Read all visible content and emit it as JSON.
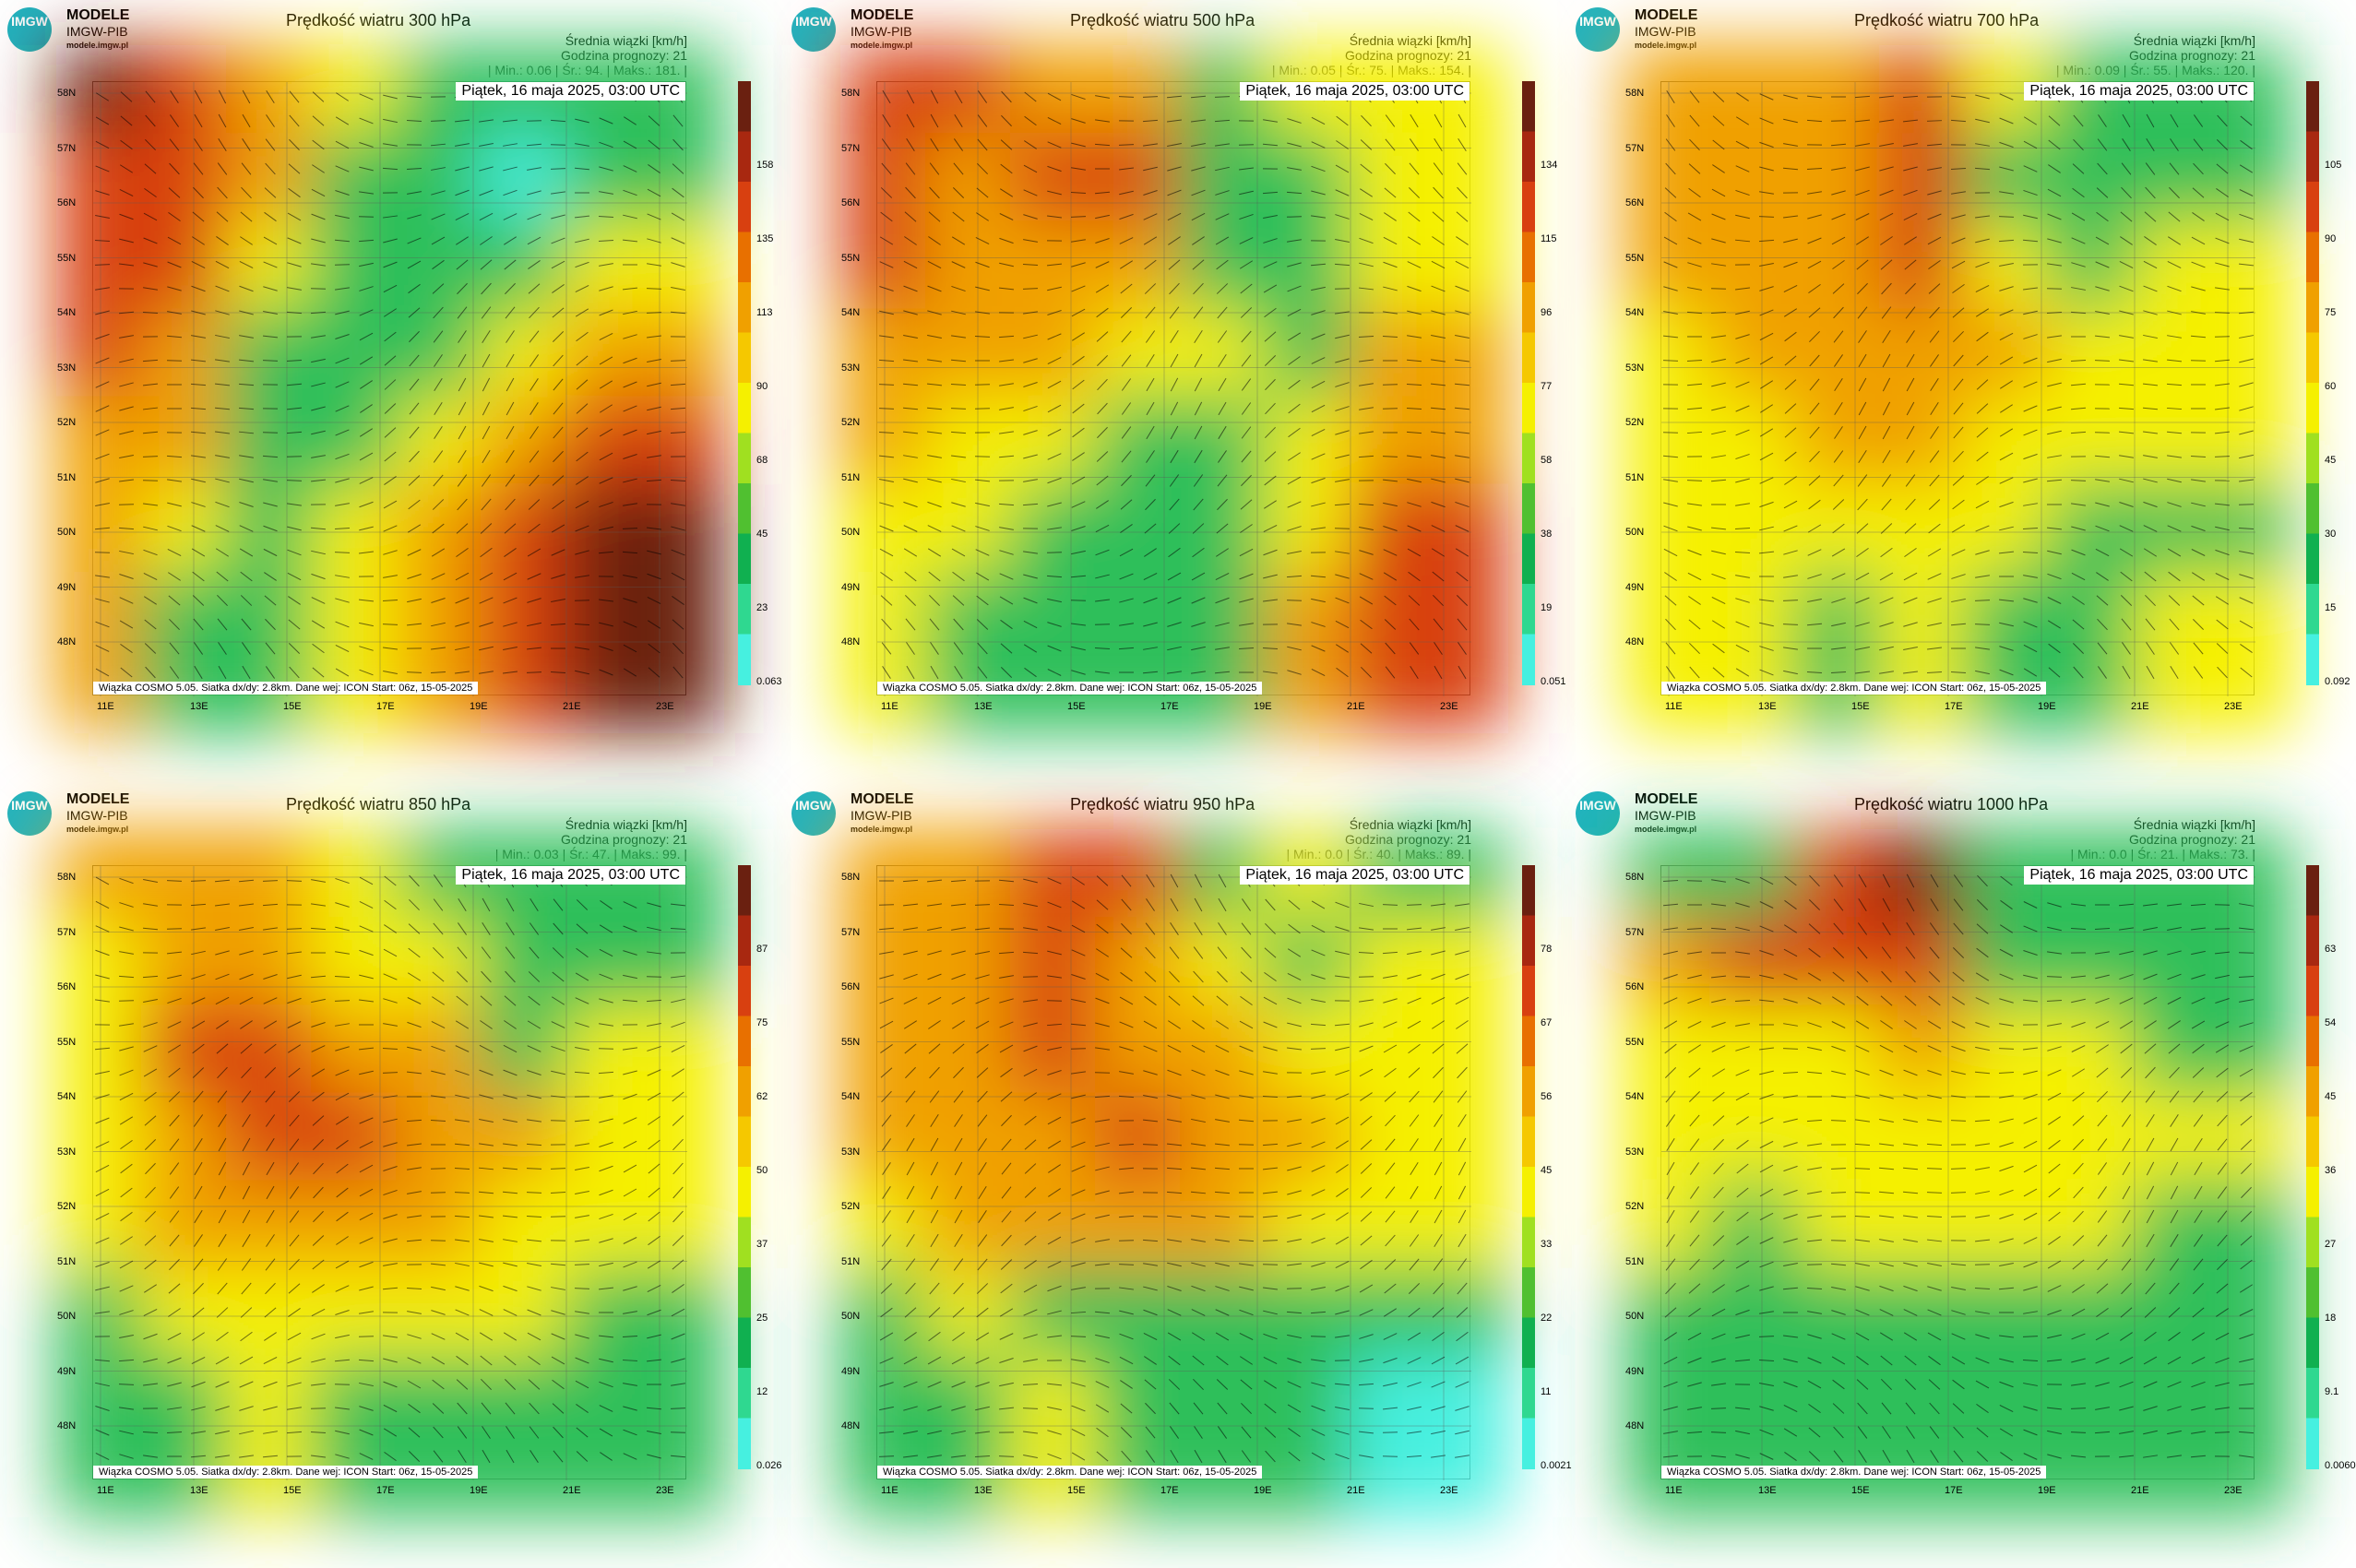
{
  "logo": {
    "mark": "IMGW",
    "line1": "MODELE",
    "line2": "IMGW-PIB",
    "line3": "modele.imgw.pl"
  },
  "common": {
    "units_label": "Średnia wiązki [km/h]",
    "forecast_label": "Godzina prognozy: 21",
    "date_label": "Piątek, 16 maja 2025, 03:00 UTC",
    "footer": "Wiązka COSMO 5.05. Siatka dx/dy: 2.8km. Dane wej: ICON Start: 06z, 15-05-2025",
    "lat_labels": [
      "58N",
      "57N",
      "56N",
      "55N",
      "54N",
      "53N",
      "52N",
      "51N",
      "50N",
      "49N",
      "48N"
    ],
    "lon_labels": [
      "11E",
      "13E",
      "15E",
      "17E",
      "19E",
      "21E",
      "23E"
    ]
  },
  "colors": {
    "cyan": "#46f0e0",
    "green": "#2fbf5a",
    "yellow": "#f5f000",
    "orange": "#f0a000",
    "red": "#d84010",
    "dark": "#6a2010"
  },
  "panels": [
    {
      "title": "Prędkość wiatru 300 hPa",
      "stats": "| Min.:    0.06 | Śr.:     94. | Maks.:    181. |",
      "cbar_ticks": [
        "158",
        "135",
        "113",
        "90",
        "68",
        "45",
        "23",
        "0.063"
      ],
      "pattern": [
        [
          "dark",
          "red",
          "orange",
          "yellow",
          "green",
          "green",
          "green"
        ],
        [
          "red",
          "red",
          "orange",
          "green",
          "green",
          "cyan",
          "green"
        ],
        [
          "red",
          "red",
          "yellow",
          "green",
          "green",
          "green",
          "yellow"
        ],
        [
          "red",
          "orange",
          "green",
          "green",
          "green",
          "yellow",
          "orange"
        ],
        [
          "orange",
          "orange",
          "green",
          "green",
          "yellow",
          "orange",
          "red"
        ],
        [
          "orange",
          "yellow",
          "green",
          "yellow",
          "orange",
          "red",
          "dark"
        ],
        [
          "orange",
          "green",
          "green",
          "yellow",
          "orange",
          "red",
          "dark"
        ]
      ]
    },
    {
      "title": "Prędkość wiatru 500 hPa",
      "stats": "| Min.:    0.05 | Śr.:     75. | Maks.:    154. |",
      "cbar_ticks": [
        "134",
        "115",
        "96",
        "77",
        "58",
        "38",
        "19",
        "0.051"
      ],
      "pattern": [
        [
          "red",
          "red",
          "orange",
          "orange",
          "green",
          "yellow",
          "yellow"
        ],
        [
          "red",
          "orange",
          "red",
          "red",
          "green",
          "green",
          "yellow"
        ],
        [
          "red",
          "orange",
          "orange",
          "orange",
          "green",
          "green",
          "yellow"
        ],
        [
          "orange",
          "orange",
          "orange",
          "yellow",
          "yellow",
          "green",
          "orange"
        ],
        [
          "orange",
          "yellow",
          "yellow",
          "green",
          "green",
          "yellow",
          "orange"
        ],
        [
          "yellow",
          "yellow",
          "green",
          "green",
          "green",
          "yellow",
          "red"
        ],
        [
          "yellow",
          "green",
          "green",
          "green",
          "green",
          "orange",
          "red"
        ]
      ]
    },
    {
      "title": "Prędkość wiatru 700 hPa",
      "stats": "| Min.:    0.09 | Śr.:     55. | Maks.:    120. |",
      "cbar_ticks": [
        "105",
        "90",
        "75",
        "60",
        "45",
        "30",
        "15",
        "0.092"
      ],
      "pattern": [
        [
          "orange",
          "orange",
          "orange",
          "red",
          "yellow",
          "green",
          "green"
        ],
        [
          "orange",
          "orange",
          "orange",
          "red",
          "green",
          "green",
          "green"
        ],
        [
          "orange",
          "orange",
          "orange",
          "red",
          "yellow",
          "green",
          "yellow"
        ],
        [
          "yellow",
          "orange",
          "orange",
          "orange",
          "orange",
          "yellow",
          "yellow"
        ],
        [
          "yellow",
          "yellow",
          "orange",
          "orange",
          "yellow",
          "yellow",
          "yellow"
        ],
        [
          "yellow",
          "yellow",
          "yellow",
          "yellow",
          "yellow",
          "green",
          "green"
        ],
        [
          "yellow",
          "yellow",
          "green",
          "yellow",
          "green",
          "green",
          "yellow"
        ]
      ]
    },
    {
      "title": "Prędkość wiatru 850 hPa",
      "stats": "| Min.:    0.03 | Śr.:     47. | Maks.:    99. |",
      "cbar_ticks": [
        "87",
        "75",
        "62",
        "50",
        "37",
        "25",
        "12",
        "0.026"
      ],
      "pattern": [
        [
          "orange",
          "orange",
          "orange",
          "yellow",
          "green",
          "green",
          "green"
        ],
        [
          "yellow",
          "orange",
          "orange",
          "yellow",
          "yellow",
          "green",
          "green"
        ],
        [
          "yellow",
          "red",
          "red",
          "orange",
          "orange",
          "green",
          "yellow"
        ],
        [
          "yellow",
          "orange",
          "red",
          "red",
          "orange",
          "orange",
          "yellow"
        ],
        [
          "yellow",
          "orange",
          "orange",
          "orange",
          "orange",
          "yellow",
          "yellow"
        ],
        [
          "green",
          "yellow",
          "yellow",
          "yellow",
          "yellow",
          "yellow",
          "green"
        ],
        [
          "green",
          "green",
          "yellow",
          "green",
          "green",
          "green",
          "green"
        ]
      ]
    },
    {
      "title": "Prędkość wiatru 950 hPa",
      "stats": "| Min.:    0.0 | Śr.:     40. | Maks.:    89. |",
      "cbar_ticks": [
        "78",
        "67",
        "56",
        "45",
        "33",
        "22",
        "11",
        "0.0021"
      ],
      "pattern": [
        [
          "orange",
          "orange",
          "red",
          "red",
          "green",
          "yellow",
          "green"
        ],
        [
          "orange",
          "orange",
          "red",
          "orange",
          "yellow",
          "green",
          "yellow"
        ],
        [
          "orange",
          "orange",
          "red",
          "orange",
          "orange",
          "yellow",
          "yellow"
        ],
        [
          "orange",
          "orange",
          "orange",
          "red",
          "orange",
          "orange",
          "yellow"
        ],
        [
          "yellow",
          "orange",
          "orange",
          "orange",
          "orange",
          "yellow",
          "yellow"
        ],
        [
          "green",
          "yellow",
          "green",
          "green",
          "green",
          "green",
          "green"
        ],
        [
          "green",
          "green",
          "yellow",
          "green",
          "green",
          "green",
          "cyan"
        ]
      ]
    },
    {
      "title": "Prędkość wiatru 1000 hPa",
      "stats": "| Min.:    0.0 | Śr.:     21. | Maks.:    73. |",
      "cbar_ticks": [
        "63",
        "54",
        "45",
        "36",
        "27",
        "18",
        "9.1",
        "0.0060"
      ],
      "pattern": [
        [
          "green",
          "green",
          "red",
          "dark",
          "green",
          "green",
          "green"
        ],
        [
          "orange",
          "red",
          "red",
          "red",
          "green",
          "green",
          "green"
        ],
        [
          "yellow",
          "yellow",
          "yellow",
          "orange",
          "yellow",
          "yellow",
          "green"
        ],
        [
          "yellow",
          "yellow",
          "yellow",
          "yellow",
          "yellow",
          "yellow",
          "yellow"
        ],
        [
          "yellow",
          "green",
          "yellow",
          "yellow",
          "yellow",
          "yellow",
          "green"
        ],
        [
          "green",
          "green",
          "green",
          "green",
          "green",
          "green",
          "green"
        ],
        [
          "green",
          "green",
          "green",
          "green",
          "green",
          "green",
          "green"
        ]
      ]
    }
  ]
}
